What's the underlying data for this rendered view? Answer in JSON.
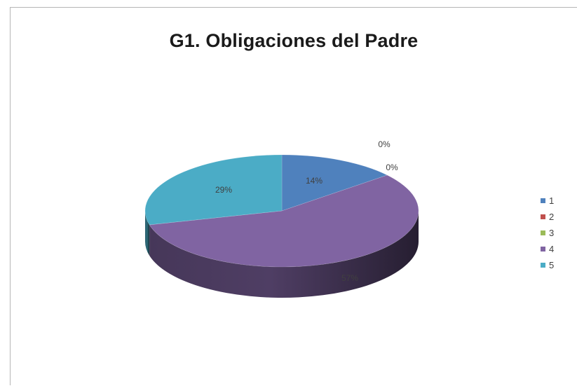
{
  "chart_data": {
    "type": "pie",
    "title": "G1. Obligaciones del Padre",
    "categories": [
      "1",
      "2",
      "3",
      "4",
      "5"
    ],
    "values": [
      14,
      0,
      0,
      57,
      29
    ],
    "data_labels": [
      "14%",
      "0%",
      "0%",
      "57%",
      "29%"
    ],
    "colors": [
      "#4f81bd",
      "#c0504d",
      "#9bbb59",
      "#8064a2",
      "#4bacc6"
    ],
    "legend_position": "right",
    "style": "3d-tilted"
  }
}
